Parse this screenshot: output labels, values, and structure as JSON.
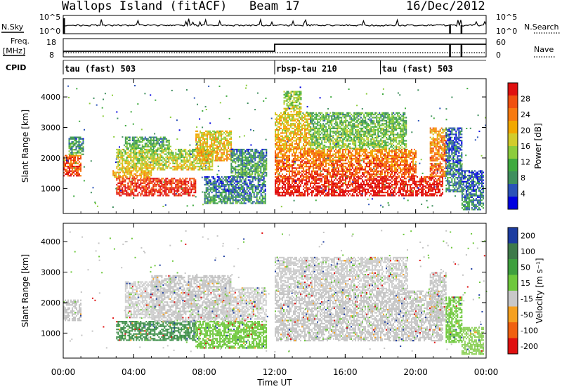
{
  "header": {
    "station": "Wallops Island (fitACF)",
    "beam": "Beam 17",
    "date": "16/Dec/2012"
  },
  "strips": {
    "nsky_label": "N.Sky",
    "nsky_ticks": [
      "10^5",
      "10^0"
    ],
    "nsearch_label": "N.Search",
    "nsearch_ticks": [
      "10^5",
      "10^0"
    ],
    "freq_label_top": "Freq.",
    "freq_label_unit": "[MHz]",
    "freq_ticks": [
      "18",
      "8"
    ],
    "nave_label": "Nave",
    "nave_ticks": [
      "60",
      "0"
    ],
    "cpid_label": "CPID"
  },
  "cpid_segments": [
    {
      "name": "tau (fast) 503",
      "start_hour": 0
    },
    {
      "name": "rbsp-tau 210",
      "start_hour": 12
    },
    {
      "name": "tau (fast) 503",
      "start_hour": 18
    }
  ],
  "chart_data": [
    {
      "type": "heatmap",
      "panel": "power",
      "ylabel": "Slant Range [km]",
      "ylim": [
        180,
        4600
      ],
      "y_ticks": [
        1000,
        2000,
        3000,
        4000
      ],
      "xlim": [
        0,
        24
      ],
      "colorbar_label": "Power [dB]",
      "colorbar_ticks": [
        "28",
        "24",
        "20",
        "16",
        "12",
        "8",
        "4"
      ],
      "colorbar_colors": [
        "#0000e0",
        "#2a52b8",
        "#3f8f5e",
        "#3faa3f",
        "#8ccc3c",
        "#d2cc2c",
        "#f2a800",
        "#f77a10",
        "#f05010",
        "#e01010"
      ],
      "blobs": [
        {
          "t0": 0.0,
          "t1": 1.0,
          "r0": 1400,
          "r1": 2100,
          "v": 0.8
        },
        {
          "t0": 0.3,
          "t1": 1.1,
          "r0": 2100,
          "r1": 2700,
          "v": 0.2
        },
        {
          "t0": 3.0,
          "t1": 7.5,
          "r0": 750,
          "r1": 1350,
          "v": 0.9
        },
        {
          "t0": 2.8,
          "t1": 5.0,
          "r0": 1350,
          "r1": 1600,
          "v": 0.6
        },
        {
          "t0": 3.0,
          "t1": 8.5,
          "r0": 1600,
          "r1": 2300,
          "v": 0.45
        },
        {
          "t0": 3.5,
          "t1": 6.0,
          "r0": 2300,
          "r1": 2700,
          "v": 0.25
        },
        {
          "t0": 7.5,
          "t1": 9.5,
          "r0": 1900,
          "r1": 2900,
          "v": 0.55
        },
        {
          "t0": 8.0,
          "t1": 11.5,
          "r0": 500,
          "r1": 1400,
          "v": 0.12
        },
        {
          "t0": 9.5,
          "t1": 11.5,
          "r0": 1400,
          "r1": 2300,
          "v": 0.2
        },
        {
          "t0": 12.0,
          "t1": 21.5,
          "r0": 750,
          "r1": 1400,
          "v": 0.95
        },
        {
          "t0": 12.0,
          "t1": 20.0,
          "r0": 1400,
          "r1": 2300,
          "v": 0.75
        },
        {
          "t0": 12.0,
          "t1": 14.0,
          "r0": 2300,
          "r1": 3500,
          "v": 0.55
        },
        {
          "t0": 14.0,
          "t1": 19.5,
          "r0": 2300,
          "r1": 3500,
          "v": 0.3
        },
        {
          "t0": 12.5,
          "t1": 13.5,
          "r0": 3500,
          "r1": 4200,
          "v": 0.4
        },
        {
          "t0": 20.8,
          "t1": 21.7,
          "r0": 1400,
          "r1": 3000,
          "v": 0.7
        },
        {
          "t0": 21.7,
          "t1": 22.6,
          "r0": 900,
          "r1": 3000,
          "v": 0.1
        },
        {
          "t0": 22.6,
          "t1": 23.8,
          "r0": 300,
          "r1": 1600,
          "v": 0.1
        }
      ]
    },
    {
      "type": "heatmap",
      "panel": "velocity",
      "ylabel": "Slant Range [km]",
      "ylim": [
        180,
        4600
      ],
      "y_ticks": [
        1000,
        2000,
        3000,
        4000
      ],
      "xlim": [
        0,
        24
      ],
      "colorbar_label": "Velocity [m s⁻¹]",
      "colorbar_ticks": [
        "200",
        "100",
        "50",
        "15",
        "-15",
        "-50",
        "-100",
        "-200"
      ],
      "colorbar_colors": [
        "#1c3ca0",
        "#3e7a4a",
        "#3e9f3e",
        "#6ec83c",
        "#c8c8c8",
        "#f5a020",
        "#f06010",
        "#e01010"
      ],
      "blobs": [
        {
          "t0": 0.0,
          "t1": 1.0,
          "r0": 1400,
          "r1": 2100,
          "c": "#c4c4c4"
        },
        {
          "t0": 3.0,
          "t1": 7.5,
          "r0": 750,
          "r1": 1400,
          "c": "#3e8f4a"
        },
        {
          "t0": 5.0,
          "t1": 9.5,
          "r0": 1400,
          "r1": 2900,
          "c": "#c4c4c4"
        },
        {
          "t0": 3.5,
          "t1": 5.5,
          "r0": 1500,
          "r1": 2700,
          "c": "#cfcfcf"
        },
        {
          "t0": 7.5,
          "t1": 11.5,
          "r0": 500,
          "r1": 1400,
          "c": "#6ec83c"
        },
        {
          "t0": 9.0,
          "t1": 11.5,
          "r0": 1400,
          "r1": 2500,
          "c": "#cfcfcf"
        },
        {
          "t0": 12.0,
          "t1": 21.5,
          "r0": 750,
          "r1": 2400,
          "c": "#c6c6c6"
        },
        {
          "t0": 12.0,
          "t1": 19.5,
          "r0": 2400,
          "r1": 3500,
          "c": "#cdcdcd"
        },
        {
          "t0": 20.8,
          "t1": 21.7,
          "r0": 1400,
          "r1": 3000,
          "c": "#c4c4c4"
        },
        {
          "t0": 21.7,
          "t1": 22.6,
          "r0": 700,
          "r1": 2200,
          "c": "#6ec83c"
        },
        {
          "t0": 22.6,
          "t1": 23.8,
          "r0": 300,
          "r1": 1200,
          "c": "#8ed05a"
        }
      ]
    }
  ],
  "x_ticks": [
    "00:00",
    "04:00",
    "08:00",
    "12:00",
    "16:00",
    "20:00",
    "00:00"
  ],
  "xlabel": "Time UT"
}
